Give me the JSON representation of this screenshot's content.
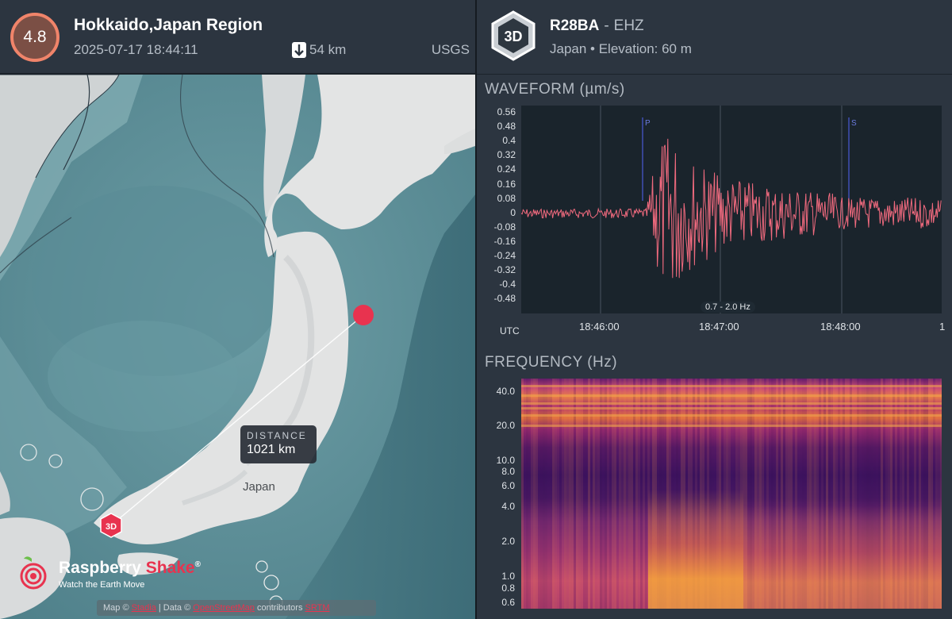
{
  "event": {
    "magnitude": "4.8",
    "title": "Hokkaido,Japan Region",
    "datetime": "2025-07-17 18:44:11",
    "depth": "54 km",
    "source": "USGS"
  },
  "station": {
    "badge": "3D",
    "code": "R28BA",
    "separator": "-",
    "channel": "EHZ",
    "location": "Japan • Elevation: 60 m"
  },
  "map": {
    "distance_label": "DISTANCE",
    "distance_value": "1021 km",
    "country_label": "Japan",
    "station_marker_label": "3D",
    "logo_name_a": "Raspberry",
    "logo_name_b": "Shake",
    "logo_reg": "®",
    "logo_tagline": "Watch the Earth Move",
    "attribution_prefix": "Map ©",
    "attribution_link1": "Stadia",
    "attribution_mid": "| Data ©",
    "attribution_link2": "OpenStreetMap",
    "attribution_suffix": "contributors",
    "attribution_link3": "SRTM",
    "event_color": "#e8334f"
  },
  "waveform": {
    "title": "WAVEFORM (µm/s)",
    "filter": "0.7 - 2.0 Hz",
    "utc_label": "UTC",
    "yticks": [
      "0.56",
      "0.48",
      "0.4",
      "0.32",
      "0.24",
      "0.16",
      "0.08",
      "0",
      "-0.08",
      "-0.16",
      "-0.24",
      "-0.32",
      "-0.4",
      "-0.48"
    ],
    "xticks": [
      "18:46:00",
      "18:47:00",
      "18:48:00",
      "1"
    ],
    "p_label": "P",
    "s_label": "S",
    "trace_color": "#f06a7e"
  },
  "frequency": {
    "title": "FREQUENCY (Hz)",
    "yticks": [
      "40.0",
      "20.0",
      "10.0",
      "8.0",
      "6.0",
      "4.0",
      "2.0",
      "1.0",
      "0.8",
      "0.6"
    ]
  }
}
